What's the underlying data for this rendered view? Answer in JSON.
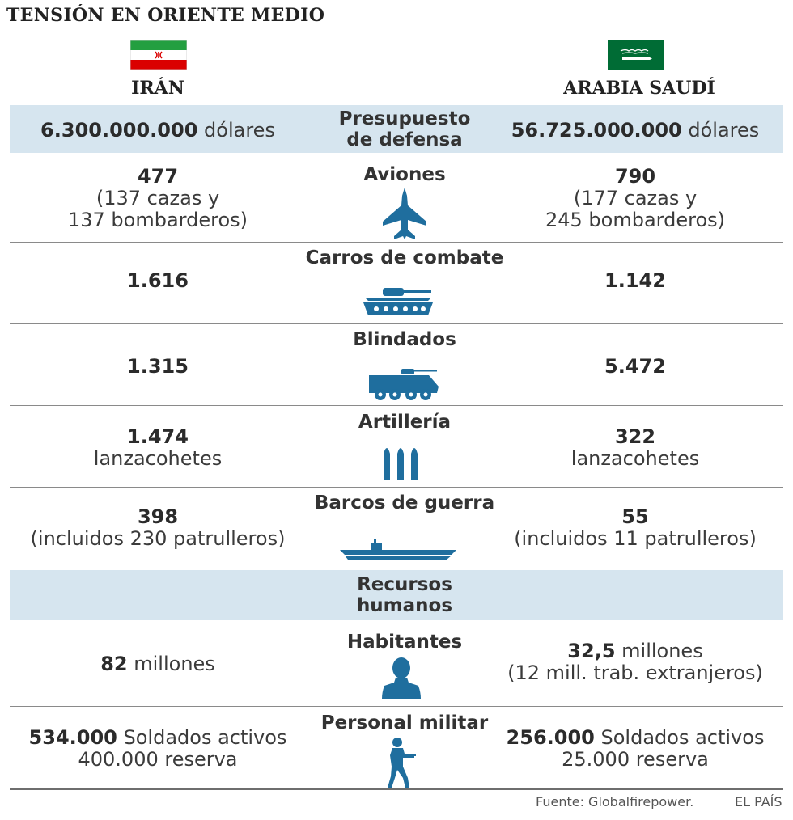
{
  "title": "TENSIÓN EN ORIENTE MEDIO",
  "left_country": "IRÁN",
  "right_country": "ARABIA SAUDÍ",
  "colors": {
    "shade": "#d6e5ef",
    "icon_blue": "#1f6e9e",
    "iran_green": "#239f40",
    "iran_red": "#da0000",
    "saudi_green": "#006c35"
  },
  "rows": {
    "budget": {
      "label": "Presupuesto de defensa",
      "left_value": "6.300.000.000",
      "left_unit": "dólares",
      "right_value": "56.725.000.000",
      "right_unit": "dólares"
    },
    "aircraft": {
      "label": "Aviones",
      "icon": "fighter-jet-icon",
      "left_value": "477",
      "left_line2": "(137 cazas y",
      "left_line3": "137 bombarderos)",
      "right_value": "790",
      "right_line2": "(177 cazas y",
      "right_line3": "245 bombarderos)"
    },
    "tanks": {
      "label": "Carros de combate",
      "icon": "tank-icon",
      "left_value": "1.616",
      "right_value": "1.142"
    },
    "armored": {
      "label": "Blindados",
      "icon": "armored-vehicle-icon",
      "left_value": "1.315",
      "right_value": "5.472"
    },
    "artillery": {
      "label": "Artillería",
      "icon": "rockets-icon",
      "left_value": "1.474",
      "left_line2": "lanzacohetes",
      "right_value": "322",
      "right_line2": "lanzacohetes"
    },
    "ships": {
      "label": "Barcos de guerra",
      "icon": "warship-icon",
      "left_value": "398",
      "left_line2": "(incluidos 230 patrulleros)",
      "right_value": "55",
      "right_line2": "(incluidos 11 patrulleros)"
    },
    "human_resources": {
      "label": "Recursos humanos"
    },
    "population": {
      "label": "Habitantes",
      "icon": "person-bust-icon",
      "left_value": "82",
      "left_unit": "millones",
      "right_value": "32,5",
      "right_unit": "millones",
      "right_line2": "(12 mill. trab. extranjeros)"
    },
    "military": {
      "label": "Personal militar",
      "icon": "soldier-icon",
      "left_value": "534.000",
      "left_unit": "Soldados activos",
      "left_line2": "400.000 reserva",
      "right_value": "256.000",
      "right_unit": "Soldados activos",
      "right_line2": "25.000 reserva"
    }
  },
  "footer": {
    "source": "Fuente: Globalfirepower.",
    "brand": "EL PAÍS"
  }
}
